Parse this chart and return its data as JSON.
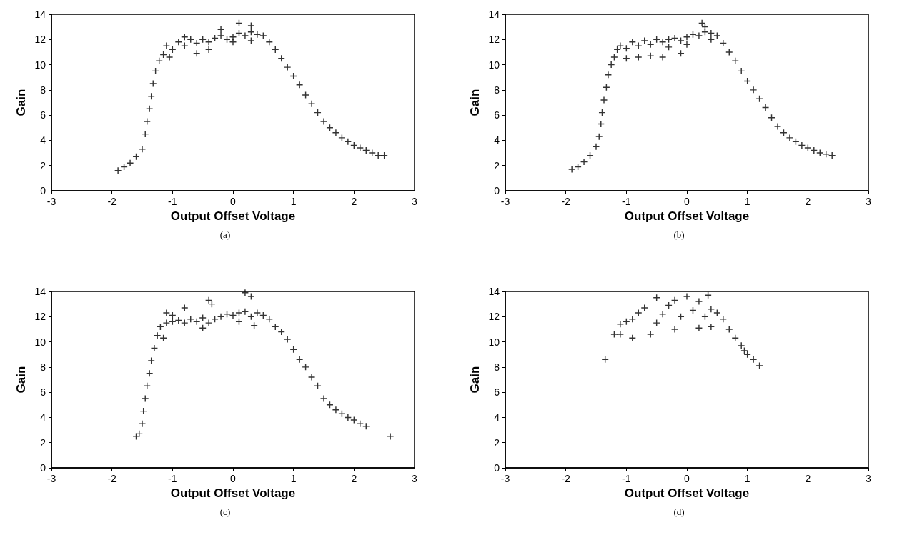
{
  "chart_data": [
    {
      "type": "scatter",
      "xlabel": "Output Offset Voltage",
      "ylabel": "Gain",
      "annotations": [
        "(a)"
      ],
      "xlim": [
        -3,
        3
      ],
      "xticks": [
        -3,
        -2,
        -1,
        0,
        1,
        2,
        3
      ],
      "ylim": [
        0,
        14
      ],
      "yticks": [
        0,
        2,
        4,
        6,
        8,
        10,
        12,
        14
      ],
      "marker": "cross",
      "series": [
        {
          "color": "#000000",
          "x": [
            -1.9,
            -1.8,
            -1.7,
            -1.6,
            -1.5,
            -1.45,
            -1.42,
            -1.38,
            -1.35,
            -1.32,
            -1.28,
            -1.22,
            -1.15,
            -1.1,
            -1.0,
            -0.9,
            -0.8,
            -0.7,
            -0.6,
            -0.5,
            -0.4,
            -0.3,
            -0.2,
            -0.1,
            0,
            0.1,
            0.2,
            0.3,
            0.4,
            0.5,
            -1.05,
            -0.6,
            -0.4,
            -0.2,
            0.1,
            0.3,
            0.0,
            0.3,
            -0.8,
            0.6,
            0.7,
            0.8,
            0.9,
            1.0,
            1.1,
            1.2,
            1.3,
            1.4,
            1.5,
            1.6,
            1.7,
            1.8,
            1.9,
            2.0,
            2.1,
            2.2,
            2.3,
            2.4,
            2.5
          ],
          "values": [
            1.6,
            1.9,
            2.2,
            2.7,
            3.3,
            4.5,
            5.5,
            6.5,
            7.5,
            8.5,
            9.5,
            10.3,
            10.8,
            11.5,
            11.2,
            11.8,
            11.5,
            12.0,
            11.7,
            12.0,
            11.8,
            12.1,
            12.3,
            12.0,
            12.2,
            12.5,
            12.3,
            12.6,
            12.4,
            12.3,
            10.6,
            10.9,
            11.2,
            12.8,
            13.3,
            13.1,
            11.8,
            11.9,
            12.2,
            11.8,
            11.2,
            10.5,
            9.8,
            9.1,
            8.4,
            7.6,
            6.9,
            6.2,
            5.5,
            5.0,
            4.6,
            4.2,
            3.9,
            3.6,
            3.4,
            3.2,
            3.0,
            2.8,
            2.8
          ]
        }
      ]
    },
    {
      "type": "scatter",
      "xlabel": "Output Offset Voltage",
      "ylabel": "Gain",
      "annotations": [
        "(b)"
      ],
      "xlim": [
        -3,
        3
      ],
      "xticks": [
        -3,
        -2,
        -1,
        0,
        1,
        2,
        3
      ],
      "ylim": [
        0,
        14
      ],
      "yticks": [
        0,
        2,
        4,
        6,
        8,
        10,
        12,
        14
      ],
      "marker": "cross",
      "series": [
        {
          "color": "#000000",
          "x": [
            -1.9,
            -1.8,
            -1.7,
            -1.6,
            -1.5,
            -1.45,
            -1.42,
            -1.4,
            -1.37,
            -1.33,
            -1.3,
            -1.25,
            -1.2,
            -1.15,
            -1.1,
            -1.0,
            -0.9,
            -0.8,
            -0.7,
            -0.6,
            -0.5,
            -0.4,
            -0.3,
            -0.2,
            -0.1,
            0,
            0.1,
            0.2,
            0.3,
            0.4,
            0.5,
            -1.0,
            -0.8,
            -0.6,
            -0.4,
            -0.1,
            0.25,
            0.3,
            0.0,
            0.4,
            -0.3,
            0.6,
            0.7,
            0.8,
            0.9,
            1.0,
            1.1,
            1.2,
            1.3,
            1.4,
            1.5,
            1.6,
            1.7,
            1.8,
            1.9,
            2.0,
            2.1,
            2.2,
            2.3,
            2.4
          ],
          "values": [
            1.7,
            1.9,
            2.3,
            2.8,
            3.5,
            4.3,
            5.3,
            6.2,
            7.2,
            8.2,
            9.2,
            10.0,
            10.6,
            11.2,
            11.5,
            11.3,
            11.8,
            11.5,
            11.9,
            11.6,
            12.0,
            11.8,
            12.0,
            12.1,
            11.9,
            12.2,
            12.4,
            12.3,
            12.6,
            12.5,
            12.3,
            10.5,
            10.6,
            10.7,
            10.6,
            10.9,
            13.3,
            13.0,
            11.6,
            12.0,
            11.4,
            11.7,
            11.0,
            10.3,
            9.5,
            8.7,
            8.0,
            7.3,
            6.6,
            5.8,
            5.1,
            4.6,
            4.2,
            3.9,
            3.6,
            3.4,
            3.2,
            3.0,
            2.9,
            2.8
          ]
        }
      ]
    },
    {
      "type": "scatter",
      "xlabel": "Output Offset Voltage",
      "ylabel": "Gain",
      "annotations": [
        "(c)"
      ],
      "xlim": [
        -3,
        3
      ],
      "xticks": [
        -3,
        -2,
        -1,
        0,
        1,
        2,
        3
      ],
      "ylim": [
        0,
        14
      ],
      "yticks": [
        0,
        2,
        4,
        6,
        8,
        10,
        12,
        14
      ],
      "marker": "cross",
      "series": [
        {
          "color": "#000000",
          "x": [
            -1.6,
            -1.55,
            -1.5,
            -1.48,
            -1.45,
            -1.42,
            -1.38,
            -1.35,
            -1.3,
            -1.25,
            -1.2,
            -1.1,
            -1.0,
            -0.9,
            -0.8,
            -0.7,
            -0.6,
            -0.5,
            -0.4,
            -0.3,
            -0.2,
            -0.1,
            0,
            0.1,
            0.2,
            0.3,
            0.4,
            0.5,
            -1.1,
            -1.0,
            -0.8,
            -0.4,
            -0.35,
            0.2,
            0.3,
            -0.5,
            0.1,
            -1.15,
            0.35,
            0.6,
            0.7,
            0.8,
            0.9,
            1.0,
            1.1,
            1.2,
            1.3,
            1.4,
            1.5,
            1.6,
            1.7,
            1.8,
            1.9,
            2.0,
            2.1,
            2.2,
            2.6
          ],
          "values": [
            2.5,
            2.7,
            3.5,
            4.5,
            5.5,
            6.5,
            7.5,
            8.5,
            9.5,
            10.5,
            11.2,
            11.5,
            11.6,
            11.7,
            11.5,
            11.8,
            11.6,
            11.9,
            11.5,
            11.8,
            12.0,
            12.2,
            12.1,
            12.3,
            12.4,
            12.0,
            12.3,
            12.1,
            12.3,
            12.1,
            12.7,
            13.3,
            13.0,
            13.9,
            13.6,
            11.1,
            11.6,
            10.3,
            11.3,
            11.8,
            11.2,
            10.8,
            10.2,
            9.4,
            8.6,
            8.0,
            7.2,
            6.5,
            5.5,
            5.0,
            4.6,
            4.3,
            4.0,
            3.8,
            3.5,
            3.3,
            2.5
          ]
        }
      ]
    },
    {
      "type": "scatter",
      "xlabel": "Output Offset Voltage",
      "ylabel": "Gain",
      "annotations": [
        "(d)"
      ],
      "xlim": [
        -3,
        3
      ],
      "xticks": [
        -3,
        -2,
        -1,
        0,
        1,
        2,
        3
      ],
      "ylim": [
        0,
        14
      ],
      "yticks": [
        0,
        2,
        4,
        6,
        8,
        10,
        12,
        14
      ],
      "marker": "cross",
      "series": [
        {
          "color": "#000000",
          "x": [
            -1.35,
            -1.2,
            -1.1,
            -1.1,
            -1.0,
            -0.9,
            -0.9,
            -0.8,
            -0.7,
            -0.6,
            -0.5,
            -0.5,
            -0.4,
            -0.3,
            -0.2,
            -0.2,
            -0.1,
            0,
            0.1,
            0.2,
            0.2,
            0.3,
            0.35,
            0.4,
            0.4,
            0.5,
            0.6,
            0.7,
            0.8,
            0.9,
            0.95,
            1.0,
            1.1,
            1.2
          ],
          "values": [
            8.6,
            10.6,
            10.6,
            11.4,
            11.6,
            10.3,
            11.8,
            12.3,
            12.7,
            10.6,
            13.5,
            11.5,
            12.2,
            12.9,
            13.3,
            11.0,
            12.0,
            13.6,
            12.5,
            11.1,
            13.2,
            12.0,
            13.7,
            12.6,
            11.2,
            12.3,
            11.8,
            11.0,
            10.3,
            9.7,
            9.3,
            9.0,
            8.6,
            8.1
          ]
        }
      ]
    }
  ]
}
